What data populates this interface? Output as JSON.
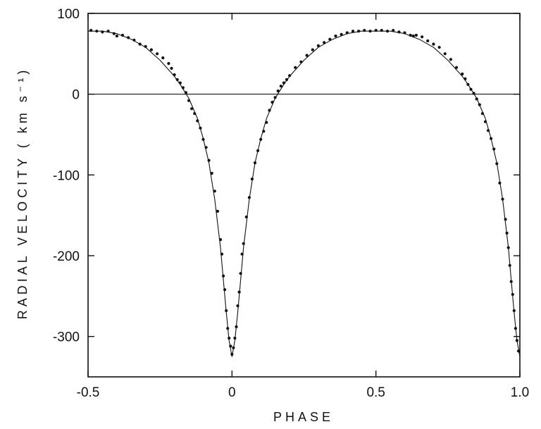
{
  "chart_data": {
    "type": "scatter",
    "title": "",
    "xlabel": "PHASE",
    "ylabel": "RADIAL  VELOCITY  ( km s⁻¹)",
    "xlim": [
      -0.5,
      1.0
    ],
    "ylim": [
      -350,
      100
    ],
    "x_ticks": [
      -0.5,
      0,
      0.5,
      1.0
    ],
    "x_tick_labels": [
      "-0.5",
      "0",
      "0.5",
      "1.0"
    ],
    "y_ticks": [
      100,
      0,
      -100,
      -200,
      -300
    ],
    "y_tick_labels": [
      "100",
      "0",
      "-100",
      "-200",
      "-300"
    ],
    "grid": false,
    "legend": "none",
    "reference_line": {
      "y": 0
    },
    "series": [
      {
        "kind": "line",
        "x": [
          -0.5,
          -0.45,
          -0.4,
          -0.35,
          -0.3,
          -0.25,
          -0.2,
          -0.18,
          -0.15,
          -0.12,
          -0.1,
          -0.08,
          -0.06,
          -0.04,
          -0.03,
          -0.02,
          -0.01,
          0.0,
          0.01,
          0.02,
          0.03,
          0.04,
          0.06,
          0.08,
          0.1,
          0.12,
          0.15,
          0.18,
          0.2,
          0.25,
          0.3,
          0.35,
          0.4,
          0.45,
          0.5,
          0.55,
          0.6,
          0.65,
          0.7,
          0.75,
          0.8,
          0.82,
          0.85,
          0.88,
          0.9,
          0.92,
          0.94,
          0.96,
          0.97,
          0.98,
          0.99,
          1.0
        ],
        "y": [
          78,
          78,
          75,
          68,
          58,
          42,
          22,
          12,
          -5,
          -30,
          -55,
          -85,
          -130,
          -190,
          -230,
          -270,
          -305,
          -325,
          -305,
          -270,
          -230,
          -190,
          -130,
          -85,
          -55,
          -30,
          -5,
          12,
          22,
          42,
          58,
          68,
          75,
          78,
          78,
          78,
          75,
          68,
          58,
          42,
          22,
          12,
          -5,
          -30,
          -55,
          -85,
          -130,
          -190,
          -230,
          -270,
          -305,
          -325
        ]
      },
      {
        "kind": "points",
        "x": [
          -0.49,
          -0.47,
          -0.45,
          -0.43,
          -0.41,
          -0.4,
          -0.38,
          -0.36,
          -0.34,
          -0.32,
          -0.3,
          -0.28,
          -0.26,
          -0.24,
          -0.22,
          -0.21,
          -0.2,
          -0.19,
          -0.18,
          -0.17,
          -0.16,
          -0.15,
          -0.14,
          -0.13,
          -0.12,
          -0.11,
          -0.1,
          -0.09,
          -0.08,
          -0.07,
          -0.06,
          -0.05,
          -0.04,
          -0.035,
          -0.03,
          -0.025,
          -0.02,
          -0.015,
          -0.01,
          -0.005,
          0.0,
          0.005,
          0.01,
          0.015,
          0.02,
          0.025,
          0.03,
          0.035,
          0.04,
          0.05,
          0.06,
          0.07,
          0.08,
          0.09,
          0.1,
          0.11,
          0.12,
          0.13,
          0.14,
          0.15,
          0.16,
          0.17,
          0.18,
          0.19,
          0.2,
          0.22,
          0.24,
          0.26,
          0.28,
          0.3,
          0.32,
          0.34,
          0.36,
          0.38,
          0.4,
          0.42,
          0.44,
          0.46,
          0.48,
          0.5,
          0.52,
          0.54,
          0.56,
          0.58,
          0.6,
          0.62,
          0.63,
          0.64,
          0.66,
          0.68,
          0.7,
          0.72,
          0.74,
          0.76,
          0.78,
          0.8,
          0.81,
          0.82,
          0.83,
          0.84,
          0.85,
          0.86,
          0.87,
          0.88,
          0.89,
          0.9,
          0.91,
          0.92,
          0.93,
          0.94,
          0.95,
          0.955,
          0.96,
          0.965,
          0.97,
          0.975,
          0.98,
          0.985,
          0.99,
          0.995
        ],
        "y": [
          79,
          78,
          77,
          78,
          75,
          72,
          73,
          70,
          67,
          62,
          59,
          55,
          50,
          45,
          38,
          32,
          24,
          18,
          14,
          8,
          2,
          -8,
          -18,
          -24,
          -33,
          -42,
          -56,
          -66,
          -82,
          -98,
          -120,
          -145,
          -180,
          -198,
          -225,
          -242,
          -268,
          -290,
          -302,
          -312,
          -322,
          -314,
          -302,
          -288,
          -262,
          -245,
          -222,
          -198,
          -185,
          -152,
          -128,
          -105,
          -85,
          -70,
          -56,
          -46,
          -35,
          -20,
          -10,
          -4,
          4,
          10,
          14,
          18,
          23,
          33,
          40,
          48,
          55,
          60,
          64,
          68,
          72,
          74,
          76,
          78,
          78,
          79,
          78,
          79,
          79,
          78,
          79,
          77,
          76,
          73,
          72,
          73,
          71,
          66,
          62,
          58,
          50,
          43,
          33,
          25,
          19,
          12,
          6,
          1,
          -6,
          -13,
          -24,
          -34,
          -45,
          -55,
          -68,
          -86,
          -110,
          -130,
          -155,
          -172,
          -190,
          -212,
          -232,
          -248,
          -268,
          -290,
          -305,
          -318
        ]
      }
    ]
  }
}
